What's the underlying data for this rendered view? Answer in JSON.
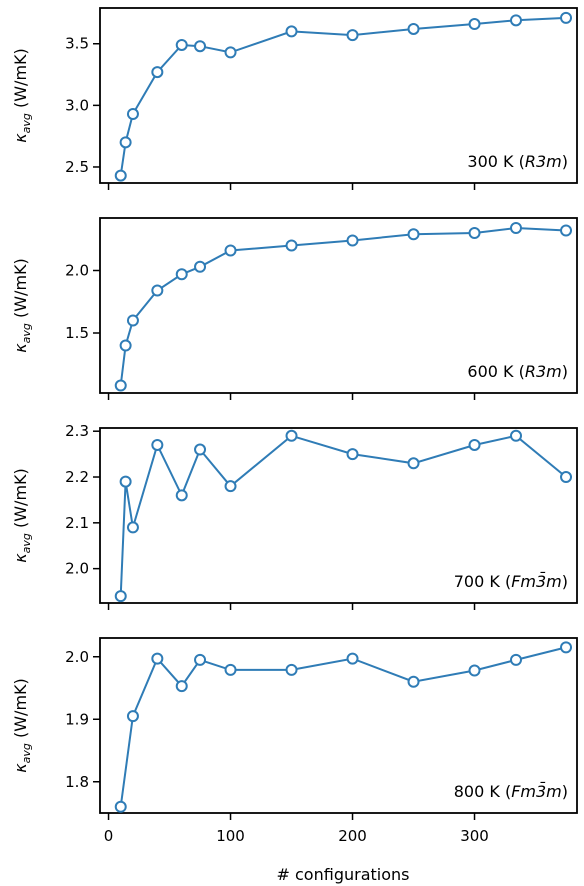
{
  "figure": {
    "xlabel": "# configurations",
    "x_ticks": [
      "0",
      "100",
      "200",
      "300"
    ],
    "x_tick_values": [
      0,
      100,
      200,
      300
    ],
    "xlim": [
      -7,
      384
    ],
    "line_color": "#2f7cb6",
    "marker": "open-circle"
  },
  "chart_data": [
    {
      "type": "line",
      "ylabel": "κ",
      "ylabel_subscript": "avg",
      "ylabel_unit": "(W/mK)",
      "annotation": "300 K (R3m)",
      "annotation_plain": "300 K (",
      "annotation_italic": "R3m",
      "annotation_close": ")",
      "x": [
        10,
        14,
        20,
        40,
        60,
        75,
        100,
        150,
        200,
        250,
        300,
        334,
        375
      ],
      "y": [
        2.43,
        2.7,
        2.93,
        3.27,
        3.49,
        3.48,
        3.43,
        3.6,
        3.57,
        3.62,
        3.66,
        3.69,
        3.71
      ],
      "ylim": [
        2.37,
        3.79
      ],
      "y_ticks": [
        "2.5",
        "3.0",
        "3.5"
      ],
      "y_tick_values": [
        2.5,
        3.0,
        3.5
      ]
    },
    {
      "type": "line",
      "ylabel": "κ",
      "ylabel_subscript": "avg",
      "ylabel_unit": "(W/mK)",
      "annotation": "600 K (R3m)",
      "annotation_plain": "600 K (",
      "annotation_italic": "R3m",
      "annotation_close": ")",
      "x": [
        10,
        14,
        20,
        40,
        60,
        75,
        100,
        150,
        200,
        250,
        300,
        334,
        375
      ],
      "y": [
        1.08,
        1.4,
        1.6,
        1.84,
        1.97,
        2.03,
        2.16,
        2.2,
        2.24,
        2.29,
        2.3,
        2.34,
        2.32
      ],
      "ylim": [
        1.02,
        2.42
      ],
      "y_ticks": [
        "1.5",
        "2.0"
      ],
      "y_tick_values": [
        1.5,
        2.0
      ]
    },
    {
      "type": "line",
      "ylabel": "κ",
      "ylabel_subscript": "avg",
      "ylabel_unit": "(W/mK)",
      "annotation": "700 K (Fm3̄m)",
      "annotation_plain": "700 K (",
      "annotation_italic": "Fm3̄m",
      "annotation_close": ")",
      "x": [
        10,
        14,
        20,
        40,
        60,
        75,
        100,
        150,
        200,
        250,
        300,
        334,
        375
      ],
      "y": [
        1.94,
        2.19,
        2.09,
        2.27,
        2.16,
        2.26,
        2.18,
        2.29,
        2.25,
        2.23,
        2.27,
        2.29,
        2.2
      ],
      "ylim": [
        1.925,
        2.307
      ],
      "y_ticks": [
        "2.0",
        "2.1",
        "2.2",
        "2.3"
      ],
      "y_tick_values": [
        2.0,
        2.1,
        2.2,
        2.3
      ]
    },
    {
      "type": "line",
      "ylabel": "κ",
      "ylabel_subscript": "avg",
      "ylabel_unit": "(W/mK)",
      "annotation": "800 K (Fm3̄m)",
      "annotation_plain": "800 K (",
      "annotation_italic": "Fm3̄m",
      "annotation_close": ")",
      "x": [
        10,
        20,
        40,
        60,
        75,
        100,
        150,
        200,
        250,
        300,
        334,
        375
      ],
      "y": [
        1.76,
        1.905,
        1.997,
        1.953,
        1.995,
        1.979,
        1.979,
        1.997,
        1.96,
        1.978,
        1.995,
        2.015
      ],
      "ylim": [
        1.75,
        2.03
      ],
      "y_ticks": [
        "1.8",
        "1.9",
        "2.0"
      ],
      "y_tick_values": [
        1.8,
        1.9,
        2.0
      ]
    }
  ]
}
